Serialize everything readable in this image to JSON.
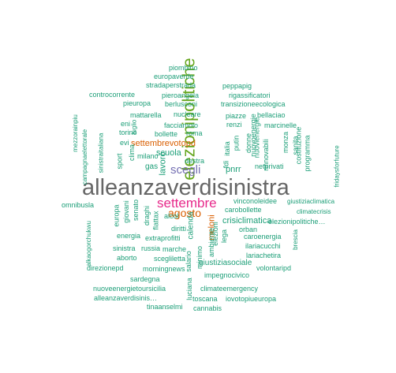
{
  "colors": {
    "teal": "#1b9e77",
    "orange": "#d95f02",
    "purple": "#7570b3",
    "magenta": "#e7298a",
    "green": "#66a61e",
    "grey": "#666666"
  },
  "words": [
    "alleanzaverdisinistra",
    "elezionipolitiche",
    "settembre",
    "scegli",
    "agosto",
    "settembrevotopd",
    "meloni",
    "piombino",
    "europaverde",
    "stradaperstrada",
    "peppapig",
    "controcorrente",
    "pieroangela",
    "rigassificatori",
    "pieuropa",
    "berlusconi",
    "transizioneecologica",
    "mattarella",
    "nucleare",
    "eni",
    "luglio",
    "facciamolo",
    "renzi",
    "piazze",
    "bellaciao",
    "marcinelle",
    "mezzorainpiu",
    "campagnaelettorale",
    "sinistraitaliana",
    "torino",
    "evi",
    "bollette",
    "roma",
    "italia",
    "putin",
    "donne",
    "nuovoenergie",
    "nuovienergie",
    "monza",
    "sanita",
    "costituzione",
    "programma",
    "fridaysforfuture",
    "sport",
    "clima",
    "milano",
    "scuola",
    "lavoro",
    "destra",
    "fdi",
    "rinnovabili",
    "netprivati",
    "gas",
    "pnrr",
    "vinconoleidee",
    "giustiziaclimatica",
    "omnibusla",
    "europa",
    "giovani",
    "senato",
    "draghi",
    "flattax",
    "calenda",
    "carobollette",
    "climatecrisis",
    "alcol",
    "diritti",
    "crisiclimatica",
    "elezionipolitiche…",
    "energia",
    "extraprofitti",
    "lega",
    "orban",
    "caroenergia",
    "alkaogorchukwu",
    "sinistra",
    "russia",
    "marche",
    "ambiente",
    "ilariacucchi",
    "brescia",
    "aborto",
    "scegliletta",
    "lariachetira",
    "direzionepd",
    "morningnews",
    "giustiziasociale",
    "volontaripd",
    "impegnocivico",
    "sardegna",
    "nuoveenergietoursicilia",
    "climateemergency",
    "alleanzaverdisinis…",
    "toscana",
    "iovotopiueuropa",
    "tinaanselmi",
    "cannabis",
    "salario",
    "minimo",
    "luciana",
    "elezioni"
  ]
}
